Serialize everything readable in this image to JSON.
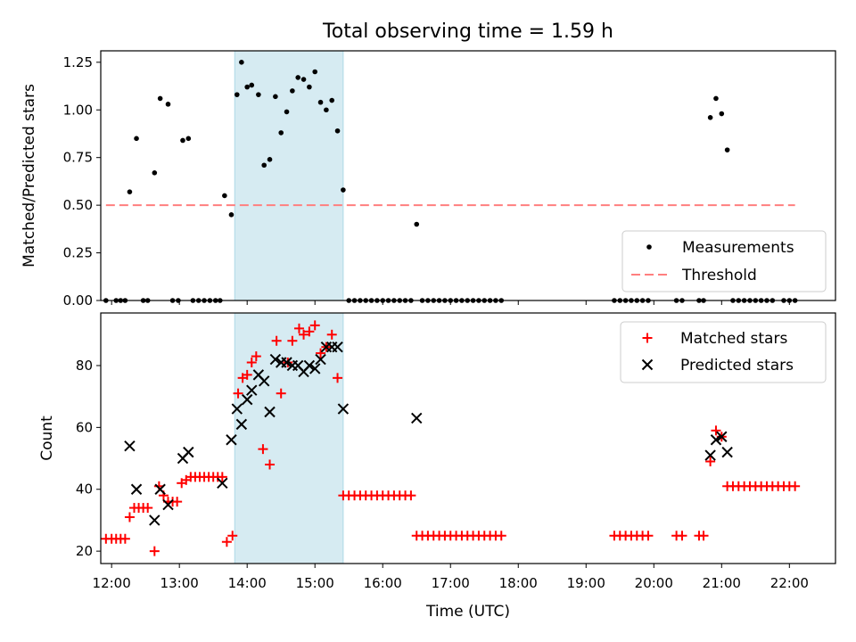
{
  "chart_data": [
    {
      "type": "scatter",
      "title": "Total observing time = 1.59 h",
      "xlabel": "",
      "ylabel": "Matched/Predicted stars",
      "ylim": [
        0.0,
        1.31
      ],
      "yticks": [
        0.0,
        0.25,
        0.5,
        0.75,
        1.0,
        1.25
      ],
      "ytick_labels": [
        "0.00",
        "0.25",
        "0.50",
        "0.75",
        "1.00",
        "1.25"
      ],
      "legend_position": "lower-right",
      "highlight_span": [
        "13:49",
        "15:25"
      ],
      "series": [
        {
          "name": "Measurements",
          "color": "#000000",
          "marker": "dot",
          "points": [
            [
              "11:55",
              0
            ],
            [
              "12:04",
              0
            ],
            [
              "12:08",
              0
            ],
            [
              "12:12",
              0
            ],
            [
              "12:16",
              0.57
            ],
            [
              "12:22",
              0.85
            ],
            [
              "12:28",
              0
            ],
            [
              "12:32",
              0
            ],
            [
              "12:38",
              0.67
            ],
            [
              "12:43",
              1.06
            ],
            [
              "12:50",
              1.03
            ],
            [
              "12:54",
              0
            ],
            [
              "12:59",
              0
            ],
            [
              "13:03",
              0.84
            ],
            [
              "13:08",
              0.85
            ],
            [
              "13:12",
              0
            ],
            [
              "13:17",
              0
            ],
            [
              "13:22",
              0
            ],
            [
              "13:27",
              0
            ],
            [
              "13:32",
              0
            ],
            [
              "13:36",
              0
            ],
            [
              "13:40",
              0.55
            ],
            [
              "13:46",
              0.45
            ],
            [
              "13:51",
              1.08
            ],
            [
              "13:55",
              1.25
            ],
            [
              "14:00",
              1.12
            ],
            [
              "14:04",
              1.13
            ],
            [
              "14:10",
              1.08
            ],
            [
              "14:15",
              0.71
            ],
            [
              "14:20",
              0.74
            ],
            [
              "14:25",
              1.07
            ],
            [
              "14:30",
              0.88
            ],
            [
              "14:35",
              0.99
            ],
            [
              "14:40",
              1.1
            ],
            [
              "14:45",
              1.17
            ],
            [
              "14:50",
              1.16
            ],
            [
              "14:55",
              1.12
            ],
            [
              "15:00",
              1.2
            ],
            [
              "15:05",
              1.04
            ],
            [
              "15:10",
              1.0
            ],
            [
              "15:15",
              1.05
            ],
            [
              "15:20",
              0.89
            ],
            [
              "15:25",
              0.58
            ],
            [
              "15:30",
              0
            ],
            [
              "15:35",
              0
            ],
            [
              "15:40",
              0
            ],
            [
              "15:45",
              0
            ],
            [
              "15:50",
              0
            ],
            [
              "15:55",
              0
            ],
            [
              "16:00",
              0
            ],
            [
              "16:05",
              0
            ],
            [
              "16:10",
              0
            ],
            [
              "16:15",
              0
            ],
            [
              "16:20",
              0
            ],
            [
              "16:25",
              0
            ],
            [
              "16:30",
              0.4
            ],
            [
              "16:35",
              0
            ],
            [
              "16:40",
              0
            ],
            [
              "16:45",
              0
            ],
            [
              "16:50",
              0
            ],
            [
              "16:55",
              0
            ],
            [
              "17:00",
              0
            ],
            [
              "17:05",
              0
            ],
            [
              "17:10",
              0
            ],
            [
              "17:15",
              0
            ],
            [
              "17:20",
              0
            ],
            [
              "17:25",
              0
            ],
            [
              "17:30",
              0
            ],
            [
              "17:35",
              0
            ],
            [
              "17:40",
              0
            ],
            [
              "17:45",
              0
            ],
            [
              "19:25",
              0
            ],
            [
              "19:30",
              0
            ],
            [
              "19:35",
              0
            ],
            [
              "19:40",
              0
            ],
            [
              "19:45",
              0
            ],
            [
              "19:50",
              0
            ],
            [
              "19:55",
              0
            ],
            [
              "20:20",
              0
            ],
            [
              "20:25",
              0
            ],
            [
              "20:40",
              0
            ],
            [
              "20:44",
              0
            ],
            [
              "20:50",
              0.96
            ],
            [
              "20:55",
              1.06
            ],
            [
              "21:00",
              0.98
            ],
            [
              "21:05",
              0.79
            ],
            [
              "21:10",
              0
            ],
            [
              "21:15",
              0
            ],
            [
              "21:20",
              0
            ],
            [
              "21:25",
              0
            ],
            [
              "21:30",
              0
            ],
            [
              "21:35",
              0
            ],
            [
              "21:40",
              0
            ],
            [
              "21:45",
              0
            ],
            [
              "21:55",
              0
            ],
            [
              "22:00",
              0
            ],
            [
              "22:05",
              0
            ]
          ]
        },
        {
          "name": "Threshold",
          "color": "#ff7f7f",
          "style": "dashed",
          "points": [
            [
              "11:55",
              0.5
            ],
            [
              "22:05",
              0.5
            ]
          ]
        }
      ]
    },
    {
      "type": "scatter",
      "title": "",
      "xlabel": "Time (UTC)",
      "ylabel": "Count",
      "ylim": [
        16,
        97
      ],
      "yticks": [
        20,
        40,
        60,
        80
      ],
      "ytick_labels": [
        "20",
        "40",
        "60",
        "80"
      ],
      "xticks": [
        "12:00",
        "13:00",
        "14:00",
        "15:00",
        "16:00",
        "17:00",
        "18:00",
        "19:00",
        "20:00",
        "21:00",
        "22:00"
      ],
      "legend_position": "upper-right",
      "highlight_span": [
        "13:49",
        "15:25"
      ],
      "series": [
        {
          "name": "Matched stars",
          "color": "#ff0000",
          "marker": "plus",
          "points": [
            [
              "11:55",
              24
            ],
            [
              "12:00",
              24
            ],
            [
              "12:04",
              24
            ],
            [
              "12:08",
              24
            ],
            [
              "12:12",
              24
            ],
            [
              "12:16",
              31
            ],
            [
              "12:20",
              34
            ],
            [
              "12:24",
              34
            ],
            [
              "12:28",
              34
            ],
            [
              "12:32",
              34
            ],
            [
              "12:38",
              20
            ],
            [
              "12:42",
              41
            ],
            [
              "12:46",
              38
            ],
            [
              "12:50",
              36
            ],
            [
              "12:54",
              36
            ],
            [
              "12:58",
              36
            ],
            [
              "13:02",
              42
            ],
            [
              "13:06",
              43
            ],
            [
              "13:10",
              44
            ],
            [
              "13:14",
              44
            ],
            [
              "13:18",
              44
            ],
            [
              "13:22",
              44
            ],
            [
              "13:26",
              44
            ],
            [
              "13:30",
              44
            ],
            [
              "13:34",
              44
            ],
            [
              "13:38",
              44
            ],
            [
              "13:42",
              23
            ],
            [
              "13:47",
              25
            ],
            [
              "13:52",
              71
            ],
            [
              "13:56",
              76
            ],
            [
              "14:00",
              77
            ],
            [
              "14:04",
              81
            ],
            [
              "14:08",
              83
            ],
            [
              "14:14",
              53
            ],
            [
              "14:20",
              48
            ],
            [
              "14:26",
              88
            ],
            [
              "14:30",
              71
            ],
            [
              "14:36",
              81
            ],
            [
              "14:40",
              88
            ],
            [
              "14:46",
              92
            ],
            [
              "14:50",
              90
            ],
            [
              "14:55",
              91
            ],
            [
              "15:00",
              93
            ],
            [
              "15:05",
              84
            ],
            [
              "15:10",
              86
            ],
            [
              "15:15",
              90
            ],
            [
              "15:20",
              76
            ],
            [
              "15:25",
              38
            ],
            [
              "15:30",
              38
            ],
            [
              "15:35",
              38
            ],
            [
              "15:40",
              38
            ],
            [
              "15:45",
              38
            ],
            [
              "15:50",
              38
            ],
            [
              "15:55",
              38
            ],
            [
              "16:00",
              38
            ],
            [
              "16:05",
              38
            ],
            [
              "16:10",
              38
            ],
            [
              "16:15",
              38
            ],
            [
              "16:20",
              38
            ],
            [
              "16:25",
              38
            ],
            [
              "16:30",
              25
            ],
            [
              "16:35",
              25
            ],
            [
              "16:40",
              25
            ],
            [
              "16:45",
              25
            ],
            [
              "16:50",
              25
            ],
            [
              "16:55",
              25
            ],
            [
              "17:00",
              25
            ],
            [
              "17:05",
              25
            ],
            [
              "17:10",
              25
            ],
            [
              "17:15",
              25
            ],
            [
              "17:20",
              25
            ],
            [
              "17:25",
              25
            ],
            [
              "17:30",
              25
            ],
            [
              "17:35",
              25
            ],
            [
              "17:40",
              25
            ],
            [
              "17:45",
              25
            ],
            [
              "19:25",
              25
            ],
            [
              "19:30",
              25
            ],
            [
              "19:35",
              25
            ],
            [
              "19:40",
              25
            ],
            [
              "19:45",
              25
            ],
            [
              "19:50",
              25
            ],
            [
              "19:55",
              25
            ],
            [
              "20:20",
              25
            ],
            [
              "20:25",
              25
            ],
            [
              "20:40",
              25
            ],
            [
              "20:44",
              25
            ],
            [
              "20:50",
              49
            ],
            [
              "20:55",
              59
            ],
            [
              "21:00",
              57
            ],
            [
              "21:05",
              41
            ],
            [
              "21:10",
              41
            ],
            [
              "21:15",
              41
            ],
            [
              "21:20",
              41
            ],
            [
              "21:25",
              41
            ],
            [
              "21:30",
              41
            ],
            [
              "21:35",
              41
            ],
            [
              "21:40",
              41
            ],
            [
              "21:45",
              41
            ],
            [
              "21:50",
              41
            ],
            [
              "21:55",
              41
            ],
            [
              "22:00",
              41
            ],
            [
              "22:05",
              41
            ]
          ]
        },
        {
          "name": "Predicted stars",
          "color": "#000000",
          "marker": "x",
          "points": [
            [
              "12:16",
              54
            ],
            [
              "12:22",
              40
            ],
            [
              "12:38",
              30
            ],
            [
              "12:43",
              40
            ],
            [
              "12:50",
              35
            ],
            [
              "13:03",
              50
            ],
            [
              "13:08",
              52
            ],
            [
              "13:38",
              42
            ],
            [
              "13:46",
              56
            ],
            [
              "13:51",
              66
            ],
            [
              "13:55",
              61
            ],
            [
              "14:00",
              69
            ],
            [
              "14:04",
              72
            ],
            [
              "14:10",
              77
            ],
            [
              "14:15",
              75
            ],
            [
              "14:20",
              65
            ],
            [
              "14:25",
              82
            ],
            [
              "14:30",
              81
            ],
            [
              "14:35",
              81
            ],
            [
              "14:40",
              80
            ],
            [
              "14:45",
              80
            ],
            [
              "14:50",
              78
            ],
            [
              "14:55",
              80
            ],
            [
              "15:00",
              79
            ],
            [
              "15:05",
              82
            ],
            [
              "15:10",
              86
            ],
            [
              "15:15",
              86
            ],
            [
              "15:20",
              86
            ],
            [
              "15:25",
              66
            ],
            [
              "16:30",
              63
            ],
            [
              "20:50",
              51
            ],
            [
              "20:55",
              56
            ],
            [
              "21:00",
              57
            ],
            [
              "21:05",
              52
            ]
          ]
        }
      ]
    }
  ]
}
